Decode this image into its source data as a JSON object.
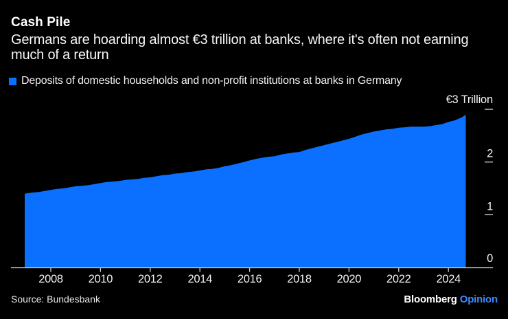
{
  "header": {
    "title": "Cash Pile",
    "subtitle": "Germans are hoarding almost €3 trillion at banks, where it's often not earning much of a return"
  },
  "legend": {
    "label": "Deposits of domestic households and non-profit institutions at banks in Germany",
    "swatch_color": "#0B6FFF"
  },
  "chart_data": {
    "type": "area",
    "title": "Cash Pile",
    "unit_label": "€3 Trillion",
    "xlabel": "",
    "ylabel": "€ trillion",
    "xlim": [
      2006.95,
      2024.78
    ],
    "ylim": [
      0,
      3
    ],
    "grid": false,
    "legend_position": "top-left",
    "x_ticks": [
      2008,
      2010,
      2012,
      2014,
      2016,
      2018,
      2020,
      2022,
      2024
    ],
    "y_ticks": [
      0,
      1,
      2,
      3
    ],
    "y_tick_labels": [
      "0",
      "1",
      "2"
    ],
    "area_color": "#0B6FFF",
    "axis_color": "#e2e2e2",
    "tick_color": "#cfcfcf",
    "label_color": "#f2f2f2",
    "series": [
      {
        "name": "Deposits of domestic households and non-profit institutions at banks in Germany",
        "points": [
          [
            2006.95,
            1.4
          ],
          [
            2007.25,
            1.42
          ],
          [
            2007.5,
            1.43
          ],
          [
            2007.75,
            1.45
          ],
          [
            2008.0,
            1.47
          ],
          [
            2008.25,
            1.49
          ],
          [
            2008.5,
            1.5
          ],
          [
            2008.75,
            1.52
          ],
          [
            2009.0,
            1.54
          ],
          [
            2009.25,
            1.55
          ],
          [
            2009.5,
            1.56
          ],
          [
            2009.75,
            1.58
          ],
          [
            2010.0,
            1.6
          ],
          [
            2010.25,
            1.62
          ],
          [
            2010.5,
            1.63
          ],
          [
            2010.75,
            1.64
          ],
          [
            2011.0,
            1.66
          ],
          [
            2011.25,
            1.67
          ],
          [
            2011.5,
            1.68
          ],
          [
            2011.75,
            1.7
          ],
          [
            2012.0,
            1.71
          ],
          [
            2012.25,
            1.73
          ],
          [
            2012.5,
            1.75
          ],
          [
            2012.75,
            1.76
          ],
          [
            2013.0,
            1.78
          ],
          [
            2013.25,
            1.79
          ],
          [
            2013.5,
            1.81
          ],
          [
            2013.75,
            1.82
          ],
          [
            2014.0,
            1.84
          ],
          [
            2014.25,
            1.86
          ],
          [
            2014.5,
            1.87
          ],
          [
            2014.75,
            1.89
          ],
          [
            2015.0,
            1.92
          ],
          [
            2015.25,
            1.94
          ],
          [
            2015.5,
            1.97
          ],
          [
            2015.75,
            2.0
          ],
          [
            2016.0,
            2.03
          ],
          [
            2016.25,
            2.06
          ],
          [
            2016.5,
            2.08
          ],
          [
            2016.75,
            2.1
          ],
          [
            2017.0,
            2.11
          ],
          [
            2017.25,
            2.14
          ],
          [
            2017.5,
            2.16
          ],
          [
            2017.75,
            2.18
          ],
          [
            2018.0,
            2.19
          ],
          [
            2018.25,
            2.23
          ],
          [
            2018.5,
            2.26
          ],
          [
            2018.75,
            2.29
          ],
          [
            2019.0,
            2.32
          ],
          [
            2019.25,
            2.35
          ],
          [
            2019.5,
            2.38
          ],
          [
            2019.75,
            2.41
          ],
          [
            2020.0,
            2.44
          ],
          [
            2020.25,
            2.48
          ],
          [
            2020.5,
            2.52
          ],
          [
            2020.75,
            2.55
          ],
          [
            2021.0,
            2.58
          ],
          [
            2021.25,
            2.6
          ],
          [
            2021.5,
            2.62
          ],
          [
            2021.75,
            2.63
          ],
          [
            2022.0,
            2.65
          ],
          [
            2022.25,
            2.66
          ],
          [
            2022.5,
            2.67
          ],
          [
            2022.75,
            2.67
          ],
          [
            2023.0,
            2.67
          ],
          [
            2023.25,
            2.68
          ],
          [
            2023.5,
            2.7
          ],
          [
            2023.75,
            2.72
          ],
          [
            2024.0,
            2.76
          ],
          [
            2024.25,
            2.79
          ],
          [
            2024.4,
            2.82
          ],
          [
            2024.55,
            2.85
          ],
          [
            2024.7,
            2.9
          ]
        ]
      }
    ]
  },
  "footer": {
    "source": "Source: Bundesbank",
    "brand": "Bloomberg",
    "brand_suffix": "Opinion",
    "brand_suffix_color": "#3E8BFF"
  }
}
